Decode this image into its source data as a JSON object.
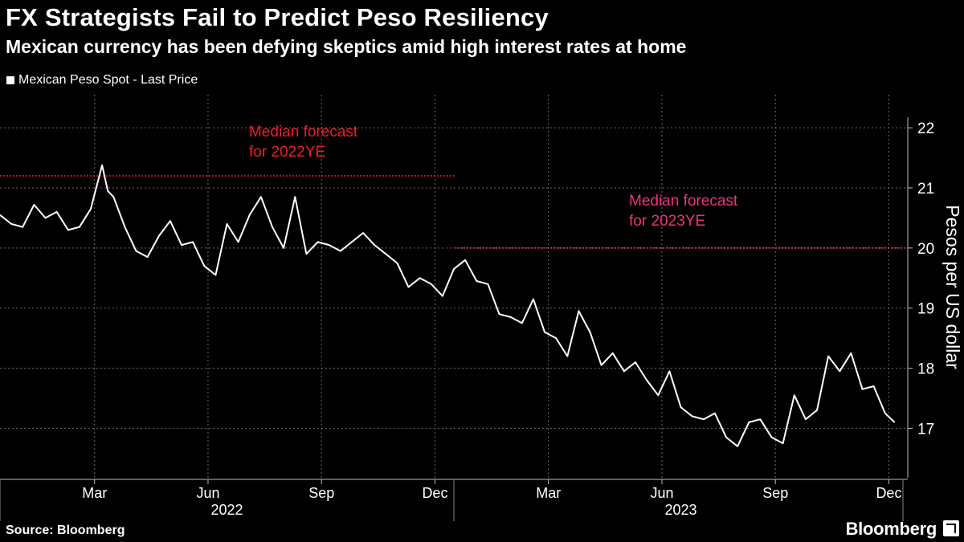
{
  "title": "FX Strategists Fail to Predict Peso Resiliency",
  "subtitle": "Mexican currency has been defying skeptics amid high interest rates at home",
  "legend": {
    "label": "Mexican Peso Spot - Last Price"
  },
  "footer": {
    "source": "Source: Bloomberg",
    "brand": "Bloomberg"
  },
  "colors": {
    "background": "#000000",
    "line": "#ffffff",
    "forecast_2022": "#e8202a",
    "forecast_2023": "#f0307f",
    "grid": "#6a6a6a"
  },
  "chart_data": {
    "type": "line",
    "title": "FX Strategists Fail to Predict Peso Resiliency",
    "ylabel": "Pesos per US dollar",
    "xlabel": "",
    "ylim": [
      16.15,
      22.55
    ],
    "yticks": [
      17,
      18,
      19,
      20,
      21,
      22
    ],
    "x_start": "2022-01-01",
    "x_end": "2023-12-31",
    "x_month_ticks": [
      {
        "label": "Mar",
        "month": 2.5
      },
      {
        "label": "Jun",
        "month": 5.5
      },
      {
        "label": "Sep",
        "month": 8.5
      },
      {
        "label": "Dec",
        "month": 11.5
      },
      {
        "label": "Mar",
        "month": 14.5
      },
      {
        "label": "Jun",
        "month": 17.5
      },
      {
        "label": "Sep",
        "month": 20.5
      },
      {
        "label": "Dec",
        "month": 23.5
      }
    ],
    "x_year_labels": [
      {
        "label": "2022",
        "month": 6
      },
      {
        "label": "2023",
        "month": 18
      }
    ],
    "series": [
      {
        "name": "Mexican Peso Spot - Last Price",
        "x": [
          0.0,
          0.3,
          0.6,
          0.9,
          1.2,
          1.5,
          1.8,
          2.1,
          2.4,
          2.7,
          2.85,
          3.0,
          3.3,
          3.6,
          3.9,
          4.2,
          4.5,
          4.8,
          5.1,
          5.4,
          5.7,
          6.0,
          6.3,
          6.6,
          6.9,
          7.2,
          7.5,
          7.8,
          8.1,
          8.4,
          8.7,
          9.0,
          9.3,
          9.6,
          9.9,
          10.2,
          10.5,
          10.8,
          11.1,
          11.4,
          11.7,
          12.0,
          12.3,
          12.6,
          12.9,
          13.2,
          13.5,
          13.8,
          14.1,
          14.4,
          14.7,
          15.0,
          15.3,
          15.6,
          15.9,
          16.2,
          16.5,
          16.8,
          17.1,
          17.4,
          17.7,
          18.0,
          18.3,
          18.6,
          18.9,
          19.2,
          19.5,
          19.8,
          20.1,
          20.4,
          20.7,
          21.0,
          21.3,
          21.6,
          21.9,
          22.2,
          22.5,
          22.8,
          23.1,
          23.4,
          23.65
        ],
        "values": [
          20.55,
          20.4,
          20.35,
          20.72,
          20.5,
          20.6,
          20.3,
          20.35,
          20.65,
          21.38,
          20.95,
          20.85,
          20.35,
          19.95,
          19.85,
          20.2,
          20.45,
          20.05,
          20.1,
          19.7,
          19.55,
          20.4,
          20.1,
          20.55,
          20.85,
          20.35,
          20.0,
          20.85,
          19.9,
          20.1,
          20.05,
          19.95,
          20.1,
          20.25,
          20.05,
          19.9,
          19.75,
          19.35,
          19.5,
          19.4,
          19.2,
          19.65,
          19.8,
          19.45,
          19.4,
          18.9,
          18.85,
          18.75,
          19.15,
          18.6,
          18.5,
          18.2,
          18.95,
          18.6,
          18.05,
          18.25,
          17.95,
          18.1,
          17.8,
          17.55,
          17.95,
          17.35,
          17.2,
          17.15,
          17.25,
          16.85,
          16.7,
          17.1,
          17.15,
          16.85,
          16.75,
          17.55,
          17.15,
          17.3,
          18.2,
          17.95,
          18.25,
          17.65,
          17.7,
          17.25,
          17.1
        ]
      }
    ],
    "annotations": [
      {
        "text_line1": "Median forecast",
        "text_line2": "for 2022YE",
        "value": 21.2,
        "x_from": 0,
        "x_to": 12
      },
      {
        "text_line1": "Median forecast",
        "text_line2": "for 2023YE",
        "value": 20.0,
        "x_from": 12,
        "x_to": 24
      }
    ]
  }
}
